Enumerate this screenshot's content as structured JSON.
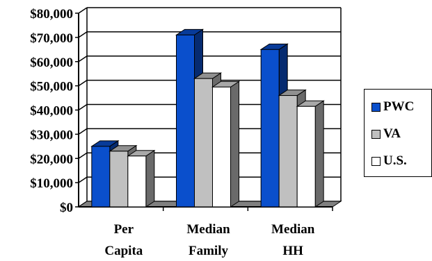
{
  "chart_data": {
    "type": "bar",
    "title": "",
    "xlabel": "",
    "ylabel": "",
    "categories": [
      [
        "Per",
        "Capita"
      ],
      [
        "Median",
        "Family"
      ],
      [
        "Median",
        "HH"
      ]
    ],
    "series": [
      {
        "name": "PWC",
        "values": [
          25000,
          71000,
          65000
        ],
        "color": "#0a4fcc"
      },
      {
        "name": "VA",
        "values": [
          23000,
          53000,
          46000
        ],
        "color": "#c0c0c0"
      },
      {
        "name": "U.S.",
        "values": [
          21000,
          49500,
          41500
        ],
        "color": "#ffffff"
      }
    ],
    "ylim": [
      0,
      80000
    ],
    "yticks": [
      "$0",
      "$10,000",
      "$20,000",
      "$30,000",
      "$40,000",
      "$50,000",
      "$60,000",
      "$70,000",
      "$80,000"
    ],
    "grid": true,
    "legend_position": "right",
    "style": "3d-column"
  }
}
